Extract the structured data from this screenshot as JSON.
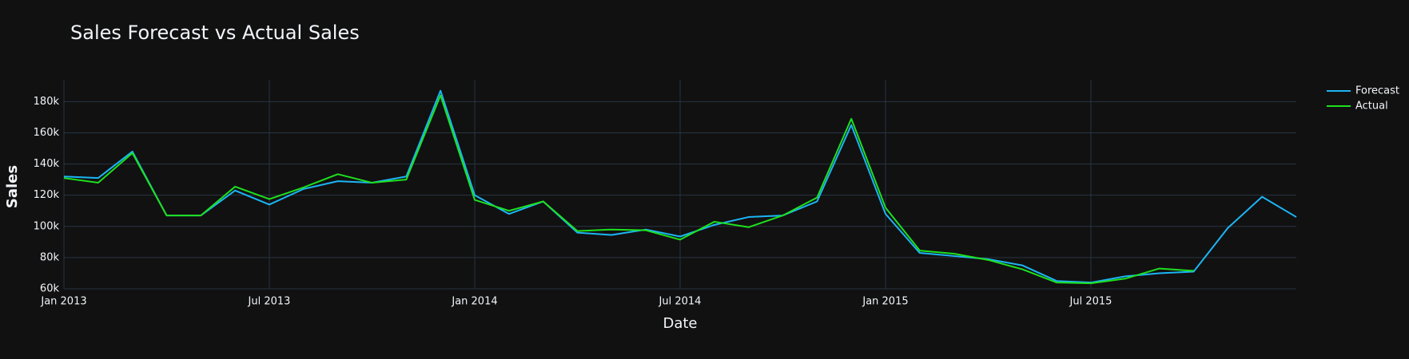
{
  "chart_data": {
    "type": "line",
    "title": "Sales Forecast vs Actual Sales",
    "x_label": "Date",
    "y_label": "Sales",
    "x": [
      "2013-01",
      "2013-02",
      "2013-03",
      "2013-04",
      "2013-05",
      "2013-06",
      "2013-07",
      "2013-08",
      "2013-09",
      "2013-10",
      "2013-11",
      "2013-12",
      "2014-01",
      "2014-02",
      "2014-03",
      "2014-04",
      "2014-05",
      "2014-06",
      "2014-07",
      "2014-08",
      "2014-09",
      "2014-10",
      "2014-11",
      "2014-12",
      "2015-01",
      "2015-02",
      "2015-03",
      "2015-04",
      "2015-05",
      "2015-06",
      "2015-07",
      "2015-08",
      "2015-09",
      "2015-10",
      "2015-11",
      "2015-12",
      "2016-01"
    ],
    "series": [
      {
        "name": "Forecast",
        "color": "#1cb5f5",
        "values": [
          132000,
          131000,
          148000,
          107000,
          107000,
          123000,
          114000,
          124000,
          129000,
          128000,
          132000,
          187000,
          120000,
          108000,
          116000,
          96000,
          94500,
          98000,
          93500,
          101000,
          106000,
          107000,
          116000,
          165000,
          108000,
          83000,
          81000,
          79000,
          75000,
          65000,
          64000,
          68000,
          70000,
          71000,
          99000,
          119000,
          106000
        ]
      },
      {
        "name": "Actual",
        "color": "#1ee01e",
        "values": [
          131000,
          128000,
          147000,
          107000,
          107000,
          125500,
          117500,
          125000,
          133500,
          128000,
          130000,
          184000,
          117000,
          110000,
          116000,
          97000,
          98000,
          97500,
          91500,
          103000,
          99500,
          107000,
          118500,
          169000,
          112000,
          84500,
          82500,
          78500,
          72500,
          64000,
          63500,
          66500,
          73000,
          71500,
          null,
          null,
          null
        ]
      }
    ],
    "xlim": [
      "2013-01",
      "2016-01"
    ],
    "xticks": [
      {
        "value": "2013-01",
        "label": "Jan 2013"
      },
      {
        "value": "2013-07",
        "label": "Jul 2013"
      },
      {
        "value": "2014-01",
        "label": "Jan 2014"
      },
      {
        "value": "2014-07",
        "label": "Jul 2014"
      },
      {
        "value": "2015-01",
        "label": "Jan 2015"
      },
      {
        "value": "2015-07",
        "label": "Jul 2015"
      }
    ],
    "ylim": [
      60000,
      194000
    ],
    "yticks": [
      {
        "value": 60000,
        "label": "60k"
      },
      {
        "value": 80000,
        "label": "80k"
      },
      {
        "value": 100000,
        "label": "100k"
      },
      {
        "value": 120000,
        "label": "120k"
      },
      {
        "value": 140000,
        "label": "140k"
      },
      {
        "value": 160000,
        "label": "160k"
      },
      {
        "value": 180000,
        "label": "180k"
      }
    ],
    "grid": true,
    "legend": "top-right"
  }
}
